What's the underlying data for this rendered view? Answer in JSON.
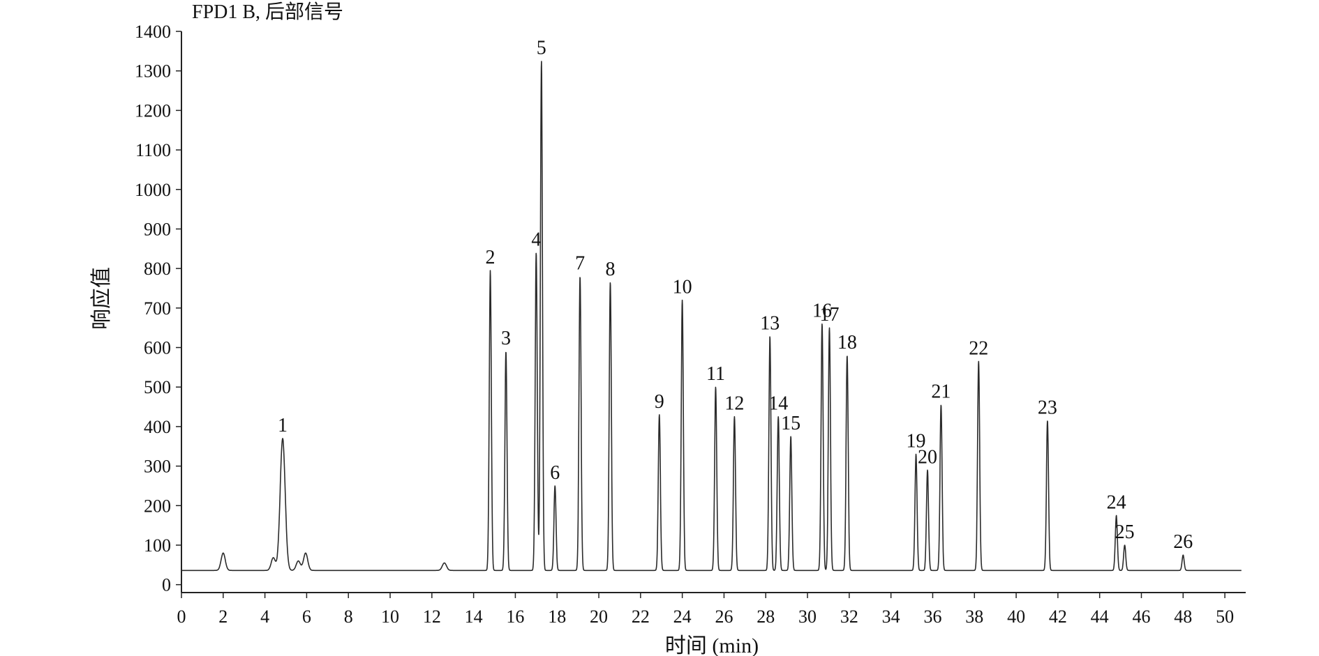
{
  "chart_data": {
    "type": "line",
    "title": "FPD1  B, 后部信号",
    "xlabel": "时间 (min)",
    "ylabel": "响应值",
    "xlim": [
      0,
      51
    ],
    "ylim": [
      -20,
      1400
    ],
    "x_ticks": [
      0,
      2,
      4,
      6,
      8,
      10,
      12,
      14,
      16,
      18,
      20,
      22,
      24,
      26,
      28,
      30,
      32,
      34,
      36,
      38,
      40,
      42,
      44,
      46,
      48,
      50
    ],
    "y_ticks": [
      0,
      100,
      200,
      300,
      400,
      500,
      600,
      700,
      800,
      900,
      1000,
      1100,
      1200,
      1300,
      1400
    ],
    "baseline": 36,
    "grid": false,
    "minor_peaks": [
      {
        "x": 2.0,
        "y": 80
      },
      {
        "x": 4.4,
        "y": 68
      },
      {
        "x": 5.6,
        "y": 60
      },
      {
        "x": 5.95,
        "y": 80
      },
      {
        "x": 12.6,
        "y": 55
      }
    ],
    "peaks": [
      {
        "label": "1",
        "x": 4.85,
        "y": 370
      },
      {
        "label": "2",
        "x": 14.8,
        "y": 795
      },
      {
        "label": "3",
        "x": 15.55,
        "y": 590
      },
      {
        "label": "4",
        "x": 17.0,
        "y": 840
      },
      {
        "label": "5",
        "x": 17.25,
        "y": 1325
      },
      {
        "label": "6",
        "x": 17.9,
        "y": 250
      },
      {
        "label": "7",
        "x": 19.1,
        "y": 780
      },
      {
        "label": "8",
        "x": 20.55,
        "y": 765
      },
      {
        "label": "9",
        "x": 22.9,
        "y": 430
      },
      {
        "label": "10",
        "x": 24.0,
        "y": 720
      },
      {
        "label": "11",
        "x": 25.6,
        "y": 500
      },
      {
        "label": "12",
        "x": 26.5,
        "y": 425
      },
      {
        "label": "13",
        "x": 28.2,
        "y": 628
      },
      {
        "label": "14",
        "x": 28.6,
        "y": 425
      },
      {
        "label": "15",
        "x": 29.2,
        "y": 375
      },
      {
        "label": "16",
        "x": 30.7,
        "y": 660
      },
      {
        "label": "17",
        "x": 31.05,
        "y": 650
      },
      {
        "label": "18",
        "x": 31.9,
        "y": 580
      },
      {
        "label": "19",
        "x": 35.2,
        "y": 330
      },
      {
        "label": "20",
        "x": 35.75,
        "y": 290
      },
      {
        "label": "21",
        "x": 36.4,
        "y": 455
      },
      {
        "label": "22",
        "x": 38.2,
        "y": 565
      },
      {
        "label": "23",
        "x": 41.5,
        "y": 415
      },
      {
        "label": "24",
        "x": 44.8,
        "y": 175
      },
      {
        "label": "25",
        "x": 45.2,
        "y": 100
      },
      {
        "label": "26",
        "x": 48.0,
        "y": 75
      }
    ]
  }
}
